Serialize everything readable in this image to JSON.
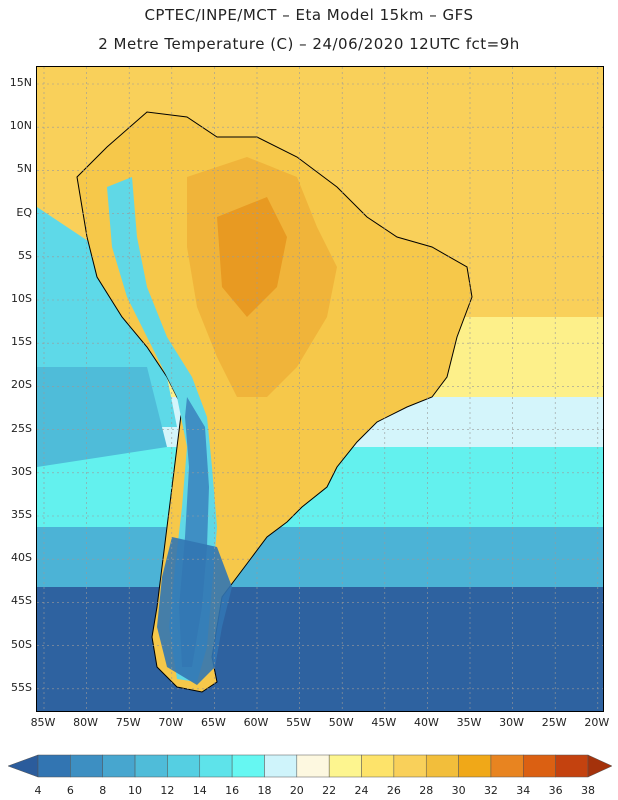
{
  "title_line1": "CPTEC/INPE/MCT –  Eta Model 15km – GFS",
  "title_line2": "2 Metre Temperature (C) – 24/06/2020 12UTC fct=9h",
  "lat_labels": [
    "15N",
    "10N",
    "5N",
    "EQ",
    "5S",
    "10S",
    "15S",
    "20S",
    "25S",
    "30S",
    "35S",
    "40S",
    "45S",
    "50S",
    "55S"
  ],
  "lon_labels": [
    "85W",
    "80W",
    "75W",
    "70W",
    "65W",
    "60W",
    "55W",
    "50W",
    "45W",
    "40W",
    "35W",
    "30W",
    "25W",
    "20W"
  ],
  "colorbar": {
    "values": [
      "4",
      "6",
      "8",
      "10",
      "12",
      "14",
      "16",
      "18",
      "20",
      "22",
      "24",
      "26",
      "28",
      "30",
      "32",
      "34",
      "36",
      "38"
    ],
    "colors": [
      "#2b5c9c",
      "#3275b2",
      "#3d8fc2",
      "#47a6cf",
      "#4fbcd9",
      "#55cfe2",
      "#5ee3ea",
      "#66f7f2",
      "#cff4fb",
      "#fdf8e0",
      "#fdf58f",
      "#fde36a",
      "#f9d05a",
      "#f2be3b",
      "#f0a818",
      "#e88420",
      "#db6012",
      "#c4420f",
      "#a4320b"
    ]
  },
  "map_colors": {
    "ocean_south": "#2e62a0",
    "ocean_mid": "#4cb3d6",
    "ocean_cyan": "#63f1ee",
    "ocean_pale": "#d4f5fb",
    "ocean_warm": "#fdf08a",
    "ocean_north": "#f9d05a",
    "land_hot": "#f0b43a",
    "land_warm": "#f6c84a",
    "andes_cold": "#3f8fc4",
    "andes_cool": "#60d8e6",
    "coast": "#000000"
  }
}
